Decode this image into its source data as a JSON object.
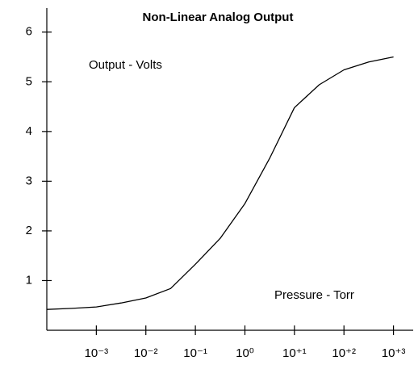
{
  "chart_data": {
    "type": "line",
    "title": "Non-Linear Analog Output",
    "annotations": [
      "Output - Volts",
      "Pressure - Torr"
    ],
    "log_x": true,
    "xlim": [
      0.0001,
      2500
    ],
    "xticks": [
      {
        "value": 0.001,
        "label": "10⁻³"
      },
      {
        "value": 0.01,
        "label": "10⁻²"
      },
      {
        "value": 0.1,
        "label": "10⁻¹"
      },
      {
        "value": 1,
        "label": "10⁰"
      },
      {
        "value": 10,
        "label": "10⁺¹"
      },
      {
        "value": 100,
        "label": "10⁺²"
      },
      {
        "value": 1000,
        "label": "10⁺³"
      }
    ],
    "ylim": [
      0,
      6.5
    ],
    "yticks": [
      1,
      2,
      3,
      4,
      5,
      6
    ],
    "series": [
      {
        "color": "#000000",
        "x": [
          0.0001,
          0.000316,
          0.001,
          0.00316,
          0.01,
          0.0316,
          0.1,
          0.316,
          1,
          3.16,
          10,
          31.6,
          100,
          316,
          1000
        ],
        "values": [
          0.42,
          0.44,
          0.47,
          0.55,
          0.65,
          0.84,
          1.33,
          1.85,
          2.55,
          3.46,
          4.48,
          4.94,
          5.24,
          5.4,
          5.5
        ]
      }
    ]
  }
}
